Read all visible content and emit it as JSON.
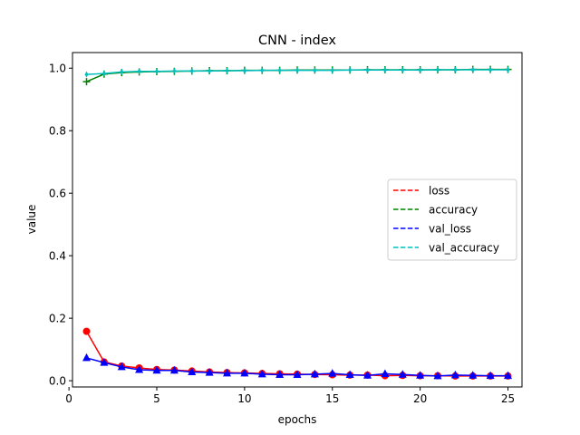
{
  "chart_data": {
    "type": "line",
    "title": "CNN - index",
    "xlabel": "epochs",
    "ylabel": "value",
    "xlim": [
      0.2,
      25.8
    ],
    "ylim": [
      -0.02,
      1.05
    ],
    "xticks": [
      0,
      5,
      10,
      15,
      20,
      25
    ],
    "yticks": [
      0.0,
      0.2,
      0.4,
      0.6,
      0.8,
      1.0
    ],
    "xtick_labels": [
      "0",
      "5",
      "10",
      "15",
      "20",
      "25"
    ],
    "ytick_labels": [
      "0.0",
      "0.2",
      "0.4",
      "0.6",
      "0.8",
      "1.0"
    ],
    "grid": false,
    "legend_position": "center-right",
    "x": [
      1,
      2,
      3,
      4,
      5,
      6,
      7,
      8,
      9,
      10,
      11,
      12,
      13,
      14,
      15,
      16,
      17,
      18,
      19,
      20,
      21,
      22,
      23,
      24,
      25
    ],
    "series": [
      {
        "name": "loss",
        "color": "#ff0000",
        "marker": "circle",
        "legend_style": "dashed",
        "values": [
          0.158,
          0.06,
          0.047,
          0.041,
          0.036,
          0.034,
          0.031,
          0.028,
          0.026,
          0.025,
          0.023,
          0.022,
          0.021,
          0.02,
          0.019,
          0.018,
          0.018,
          0.016,
          0.017,
          0.016,
          0.016,
          0.015,
          0.015,
          0.015,
          0.015
        ]
      },
      {
        "name": "accuracy",
        "color": "#008000",
        "marker": "plus",
        "legend_style": "dashed",
        "values": [
          0.957,
          0.981,
          0.986,
          0.988,
          0.989,
          0.99,
          0.991,
          0.992,
          0.992,
          0.993,
          0.993,
          0.993,
          0.994,
          0.994,
          0.994,
          0.994,
          0.995,
          0.995,
          0.995,
          0.995,
          0.995,
          0.995,
          0.996,
          0.996,
          0.996
        ]
      },
      {
        "name": "val_loss",
        "color": "#0000ff",
        "marker": "triangle",
        "legend_style": "dashed",
        "values": [
          0.073,
          0.058,
          0.044,
          0.035,
          0.033,
          0.033,
          0.028,
          0.026,
          0.024,
          0.024,
          0.021,
          0.019,
          0.019,
          0.021,
          0.023,
          0.019,
          0.017,
          0.022,
          0.02,
          0.017,
          0.015,
          0.018,
          0.017,
          0.016,
          0.016
        ]
      },
      {
        "name": "val_accuracy",
        "color": "#00bfbf",
        "marker": "diamond",
        "legend_style": "dashed",
        "values": [
          0.98,
          0.983,
          0.988,
          0.99,
          0.99,
          0.991,
          0.991,
          0.991,
          0.992,
          0.992,
          0.993,
          0.993,
          0.993,
          0.993,
          0.993,
          0.994,
          0.994,
          0.994,
          0.994,
          0.994,
          0.995,
          0.995,
          0.995,
          0.995,
          0.995
        ]
      }
    ]
  }
}
